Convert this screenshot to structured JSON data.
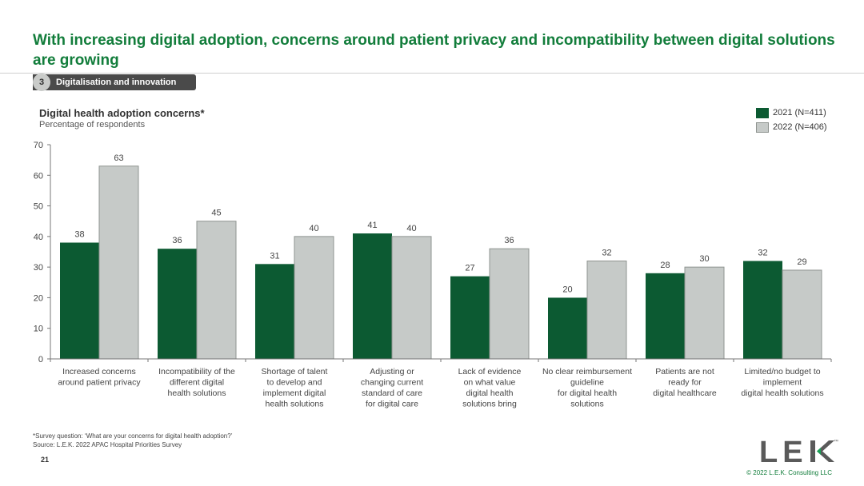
{
  "headline": "With increasing digital adoption, concerns around patient privacy and incompatibility between digital solutions are growing",
  "section": {
    "number": "3",
    "label": "Digitalisation and innovation"
  },
  "colors": {
    "brand_green": "#127d3b",
    "series_2021": "#0c5a32",
    "series_2022": "#c6cac8"
  },
  "chart_data": {
    "type": "bar",
    "title": "Digital health adoption concerns*",
    "subtitle": "Percentage of respondents",
    "ylim": [
      0,
      70
    ],
    "yticks": [
      0,
      10,
      20,
      30,
      40,
      50,
      60,
      70
    ],
    "grid": false,
    "legend_position": "top-right",
    "categories": [
      [
        "Increased concerns",
        "around patient privacy"
      ],
      [
        "Incompatibility of the",
        "different digital",
        "health solutions"
      ],
      [
        "Shortage of talent",
        "to develop and",
        "implement digital",
        "health solutions"
      ],
      [
        "Adjusting or",
        "changing current",
        "standard of care",
        "for digital care"
      ],
      [
        "Lack of evidence",
        "on what value",
        "digital health",
        "solutions bring"
      ],
      [
        "No clear reimbursement",
        "guideline",
        "for digital health",
        "solutions"
      ],
      [
        "Patients are not",
        "ready for",
        "digital healthcare"
      ],
      [
        "Limited/no budget to",
        "implement",
        "digital health solutions"
      ]
    ],
    "series": [
      {
        "name": "2021 (N=411)",
        "values": [
          38,
          36,
          31,
          41,
          27,
          20,
          28,
          32
        ]
      },
      {
        "name": "2022 (N=406)",
        "values": [
          63,
          45,
          40,
          40,
          36,
          32,
          30,
          29
        ]
      }
    ]
  },
  "footnote": {
    "survey": "*Survey question: ‘What are your concerns for digital health adoption?’",
    "source": "Source:  L.E.K. 2022 APAC Hospital Priorities Survey"
  },
  "page_number": "21",
  "logo": {
    "text": "LEK",
    "tm": "™",
    "icon": "lek-logo"
  },
  "copyright": "© 2022 L.E.K. Consulting LLC"
}
